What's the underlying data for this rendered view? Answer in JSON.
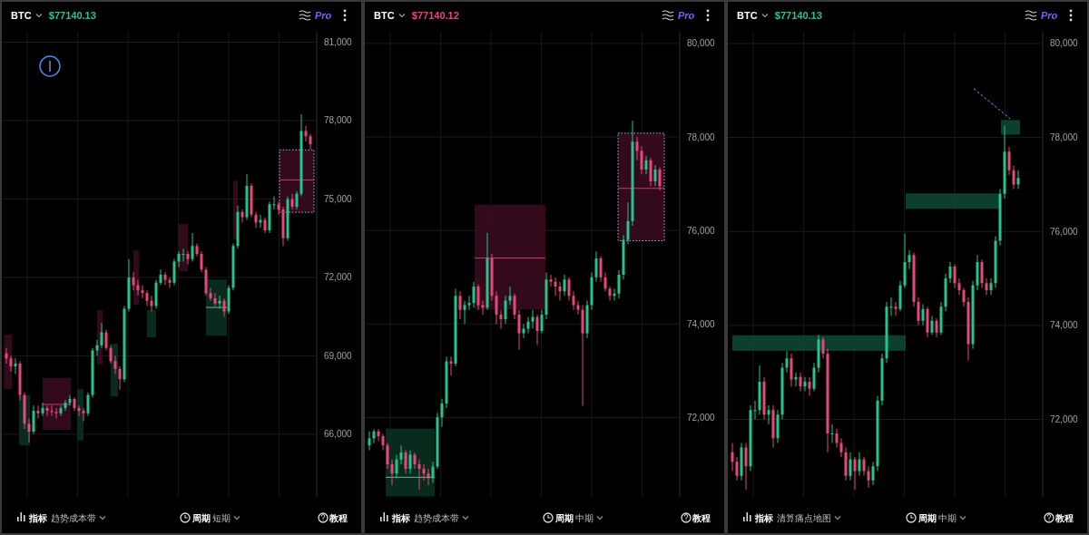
{
  "chart_data": [
    {
      "type": "candlestick",
      "title": "BTC",
      "subtitle": "$77140.13",
      "annotations": [
        "Pro",
        "指标",
        "趋势成本带",
        "周期",
        "短期",
        "教程"
      ],
      "categories": [
        null,
        null,
        null,
        null,
        null,
        null,
        null,
        null,
        null,
        null,
        null,
        null,
        null,
        null,
        null,
        null,
        null,
        null,
        null,
        null,
        null,
        null,
        null,
        null,
        null,
        null,
        null,
        null,
        null,
        null,
        null,
        null,
        null,
        null,
        null,
        null,
        null,
        null,
        null,
        null,
        null,
        null,
        null,
        null,
        null,
        null,
        null,
        null,
        null,
        null,
        null,
        null,
        null,
        null,
        null,
        null,
        null,
        null,
        null,
        null,
        null,
        null,
        null,
        null,
        null,
        null,
        null,
        null
      ],
      "ohlc": [
        [
          69100,
          69300,
          68700,
          68900
        ],
        [
          68900,
          69000,
          68400,
          68600
        ],
        [
          68600,
          68900,
          68300,
          68700
        ],
        [
          68700,
          68800,
          67300,
          67500
        ],
        [
          67500,
          67600,
          66200,
          66400
        ],
        [
          66400,
          66600,
          65700,
          66100
        ],
        [
          66100,
          67100,
          66000,
          66900
        ],
        [
          66900,
          67100,
          66600,
          66800
        ],
        [
          66800,
          67200,
          66700,
          67000
        ],
        [
          67000,
          67100,
          66700,
          66900
        ],
        [
          66900,
          67100,
          66700,
          66850
        ],
        [
          66850,
          67000,
          66600,
          66800
        ],
        [
          66800,
          67100,
          66700,
          67000
        ],
        [
          67000,
          67300,
          66900,
          67200
        ],
        [
          67200,
          67500,
          67100,
          67350
        ],
        [
          67350,
          67400,
          66900,
          67000
        ],
        [
          67000,
          67100,
          66700,
          66900
        ],
        [
          66900,
          67000,
          66500,
          66800
        ],
        [
          66800,
          67600,
          66700,
          67500
        ],
        [
          67500,
          69300,
          67400,
          69200
        ],
        [
          69200,
          69600,
          69000,
          69400
        ],
        [
          69400,
          70250,
          69300,
          69900
        ],
        [
          69900,
          70000,
          69200,
          69300
        ],
        [
          69300,
          69400,
          68700,
          68800
        ],
        [
          68800,
          69000,
          68300,
          68500
        ],
        [
          68500,
          68600,
          67700,
          68100
        ],
        [
          68100,
          70900,
          68000,
          70800
        ],
        [
          70800,
          72700,
          70700,
          72000
        ],
        [
          72000,
          72200,
          71500,
          71700
        ],
        [
          71700,
          71900,
          71300,
          71500
        ],
        [
          71500,
          71700,
          71200,
          71400
        ],
        [
          71400,
          71500,
          70900,
          71100
        ],
        [
          71100,
          71300,
          70700,
          70900
        ],
        [
          70900,
          71900,
          70800,
          71800
        ],
        [
          71800,
          72300,
          71700,
          72100
        ],
        [
          72100,
          72200,
          71700,
          71900
        ],
        [
          71900,
          72000,
          71600,
          71800
        ],
        [
          71800,
          72700,
          71700,
          72600
        ],
        [
          72600,
          73000,
          72400,
          72900
        ],
        [
          72900,
          73100,
          72600,
          72900
        ],
        [
          72900,
          73000,
          72500,
          72700
        ],
        [
          72700,
          73700,
          72600,
          73200
        ],
        [
          73200,
          73300,
          72800,
          72900
        ],
        [
          72900,
          73000,
          72200,
          72300
        ],
        [
          72300,
          72400,
          71300,
          71400
        ],
        [
          71400,
          71600,
          71100,
          71200
        ],
        [
          71200,
          71400,
          70900,
          71000
        ],
        [
          71000,
          71300,
          70800,
          71100
        ],
        [
          71100,
          71200,
          70500,
          70700
        ],
        [
          70700,
          71700,
          70600,
          71600
        ],
        [
          71600,
          73300,
          71500,
          73200
        ],
        [
          73200,
          74750,
          73100,
          74500
        ],
        [
          74500,
          74600,
          74100,
          74300
        ],
        [
          74300,
          75950,
          74200,
          75500
        ],
        [
          75500,
          75600,
          74300,
          74400
        ],
        [
          74400,
          74500,
          73900,
          74100
        ],
        [
          74100,
          74400,
          73900,
          74200
        ],
        [
          74200,
          74300,
          73700,
          73800
        ],
        [
          73800,
          74900,
          73700,
          74800
        ],
        [
          74800,
          75100,
          74600,
          74800
        ],
        [
          74800,
          74900,
          74400,
          74600
        ],
        [
          74600,
          74700,
          73200,
          73500
        ],
        [
          73500,
          75100,
          73400,
          75000
        ],
        [
          75000,
          75200,
          74600,
          74700
        ],
        [
          74700,
          75300,
          74600,
          75200
        ],
        [
          75200,
          78250,
          75100,
          77600
        ],
        [
          77600,
          77800,
          77200,
          77400
        ],
        [
          77400,
          77500,
          76900,
          77100
        ]
      ],
      "ylim": [
        63600,
        81400
      ],
      "yticks": [
        {
          "value": 66000,
          "label": "66,000"
        },
        {
          "value": 69000,
          "label": "69,000"
        },
        {
          "value": 72000,
          "label": "72,000"
        },
        {
          "value": 75000,
          "label": "75,000"
        },
        {
          "value": 78000,
          "label": "78,000"
        },
        {
          "value": 81000,
          "label": "81,000"
        }
      ],
      "grid": true
    },
    {
      "type": "candlestick",
      "title": "BTC",
      "subtitle": "$77140.12",
      "annotations": [
        "Pro",
        "指标",
        "趋势成本带",
        "周期",
        "中期",
        "教程"
      ],
      "categories": [
        null,
        null,
        null,
        null,
        null,
        null,
        null,
        null,
        null,
        null,
        null,
        null,
        null,
        null,
        null,
        null,
        null,
        null,
        null,
        null,
        null,
        null,
        null,
        null,
        null,
        null,
        null,
        null,
        null,
        null,
        null,
        null,
        null,
        null,
        null,
        null,
        null,
        null,
        null,
        null,
        null,
        null,
        null,
        null,
        null,
        null,
        null,
        null,
        null,
        null,
        null,
        null,
        null,
        null,
        null,
        null,
        null,
        null,
        null,
        null,
        null,
        null,
        null,
        null,
        null
      ],
      "ohlc": [
        [
          71400,
          71700,
          71300,
          71550
        ],
        [
          71550,
          71750,
          71450,
          71700
        ],
        [
          71700,
          71750,
          71500,
          71600
        ],
        [
          71600,
          71650,
          71300,
          71400
        ],
        [
          71400,
          71450,
          70900,
          71000
        ],
        [
          71000,
          71100,
          70550,
          70800
        ],
        [
          70800,
          71200,
          70700,
          71100
        ],
        [
          71100,
          71400,
          71000,
          71250
        ],
        [
          71250,
          71300,
          70800,
          70900
        ],
        [
          70900,
          71300,
          70800,
          71200
        ],
        [
          71200,
          71250,
          70900,
          71000
        ],
        [
          71000,
          71100,
          70450,
          70900
        ],
        [
          70900,
          71000,
          70650,
          70800
        ],
        [
          70800,
          70900,
          70550,
          70700
        ],
        [
          70700,
          71050,
          70600,
          70950
        ],
        [
          70950,
          72100,
          70900,
          72000
        ],
        [
          72000,
          72400,
          71800,
          72300
        ],
        [
          72300,
          73300,
          72200,
          73200
        ],
        [
          73200,
          73300,
          72900,
          73150
        ],
        [
          73150,
          74750,
          73100,
          74600
        ],
        [
          74600,
          74700,
          74100,
          74300
        ],
        [
          74300,
          74500,
          74000,
          74400
        ],
        [
          74400,
          74600,
          74300,
          74450
        ],
        [
          74450,
          74900,
          74350,
          74800
        ],
        [
          74800,
          74850,
          74300,
          74400
        ],
        [
          74400,
          74500,
          74200,
          74350
        ],
        [
          74350,
          75950,
          74300,
          75400
        ],
        [
          75400,
          75500,
          74500,
          74600
        ],
        [
          74600,
          74700,
          74000,
          74200
        ],
        [
          74200,
          74300,
          73900,
          74100
        ],
        [
          74100,
          74600,
          74000,
          74500
        ],
        [
          74500,
          74800,
          74400,
          74600
        ],
        [
          74600,
          74650,
          74100,
          74200
        ],
        [
          74200,
          74300,
          73450,
          73800
        ],
        [
          73800,
          74000,
          73700,
          73900
        ],
        [
          73900,
          74150,
          73800,
          74050
        ],
        [
          74050,
          74300,
          73900,
          74150
        ],
        [
          74150,
          74200,
          73550,
          73850
        ],
        [
          73850,
          74300,
          73800,
          74200
        ],
        [
          74200,
          75100,
          74100,
          74950
        ],
        [
          74950,
          75050,
          74800,
          74900
        ],
        [
          74900,
          75000,
          74600,
          74800
        ],
        [
          74800,
          74900,
          74500,
          74700
        ],
        [
          74700,
          75050,
          74600,
          74950
        ],
        [
          74950,
          75000,
          74500,
          74600
        ],
        [
          74600,
          74700,
          74300,
          74400
        ],
        [
          74400,
          74500,
          74200,
          74300
        ],
        [
          74300,
          74400,
          72250,
          73800
        ],
        [
          73800,
          74500,
          73700,
          74400
        ],
        [
          74400,
          75100,
          74300,
          75000
        ],
        [
          75000,
          75550,
          74900,
          75400
        ],
        [
          75400,
          75450,
          74900,
          75000
        ],
        [
          75000,
          75100,
          74700,
          74750
        ],
        [
          74750,
          74800,
          74500,
          74600
        ],
        [
          74600,
          74750,
          74500,
          74650
        ],
        [
          74650,
          75150,
          74550,
          75050
        ],
        [
          75050,
          75900,
          74950,
          75800
        ],
        [
          75800,
          76600,
          75700,
          76200
        ],
        [
          76200,
          78350,
          76100,
          77900
        ],
        [
          77900,
          78000,
          77500,
          77700
        ],
        [
          77700,
          77800,
          77200,
          77300
        ],
        [
          77300,
          77600,
          77200,
          77500
        ],
        [
          77500,
          77550,
          76950,
          77050
        ],
        [
          77050,
          77400,
          76950,
          77300
        ],
        [
          77300,
          77350,
          76850,
          76950
        ]
      ],
      "ylim": [
        70300,
        80250
      ],
      "yticks": [
        {
          "value": 72000,
          "label": "72,000"
        },
        {
          "value": 74000,
          "label": "74,000"
        },
        {
          "value": 76000,
          "label": "76,000"
        },
        {
          "value": 78000,
          "label": "78,000"
        },
        {
          "value": 80000,
          "label": "80,000"
        }
      ],
      "grid": true
    },
    {
      "type": "candlestick",
      "title": "BTC",
      "subtitle": "$77140.13",
      "annotations": [
        "Pro",
        "指标",
        "清算痛点地图",
        "周期",
        "中期",
        "教程"
      ],
      "categories": [
        null,
        null,
        null,
        null,
        null,
        null,
        null,
        null,
        null,
        null,
        null,
        null,
        null,
        null,
        null,
        null,
        null,
        null,
        null,
        null,
        null,
        null,
        null,
        null,
        null,
        null,
        null,
        null,
        null,
        null,
        null,
        null,
        null,
        null,
        null,
        null,
        null,
        null,
        null,
        null,
        null,
        null,
        null,
        null,
        null,
        null,
        null,
        null,
        null,
        null,
        null,
        null,
        null,
        null,
        null,
        null,
        null,
        null,
        null,
        null,
        null,
        null,
        null,
        null
      ],
      "ohlc": [
        [
          71300,
          71500,
          70900,
          71100
        ],
        [
          71100,
          71200,
          70700,
          70800
        ],
        [
          70800,
          71500,
          70700,
          71400
        ],
        [
          71400,
          71500,
          70500,
          71000
        ],
        [
          71000,
          72300,
          70900,
          72200
        ],
        [
          72200,
          72400,
          72000,
          72200
        ],
        [
          72200,
          73150,
          72100,
          72800
        ],
        [
          72800,
          72900,
          72000,
          72100
        ],
        [
          72100,
          72300,
          71900,
          72200
        ],
        [
          72200,
          72300,
          71400,
          71600
        ],
        [
          71600,
          72200,
          71500,
          72100
        ],
        [
          72100,
          73200,
          72000,
          73100
        ],
        [
          73100,
          73450,
          73000,
          73300
        ],
        [
          73300,
          73400,
          72700,
          72850
        ],
        [
          72850,
          73000,
          72700,
          72900
        ],
        [
          72900,
          73000,
          72600,
          72700
        ],
        [
          72700,
          72900,
          72600,
          72800
        ],
        [
          72800,
          72900,
          72500,
          72650
        ],
        [
          72650,
          73200,
          72600,
          73100
        ],
        [
          73100,
          73800,
          73000,
          73700
        ],
        [
          73700,
          73750,
          73300,
          73400
        ],
        [
          73400,
          73500,
          71300,
          71700
        ],
        [
          71700,
          71900,
          71500,
          71700
        ],
        [
          71700,
          71800,
          71400,
          71500
        ],
        [
          71500,
          71600,
          71200,
          71300
        ],
        [
          71300,
          71400,
          70700,
          70800
        ],
        [
          70800,
          71300,
          70700,
          71150
        ],
        [
          71150,
          71200,
          70500,
          70900
        ],
        [
          70900,
          71300,
          70800,
          71150
        ],
        [
          71150,
          71200,
          70800,
          70900
        ],
        [
          70900,
          71000,
          70550,
          70700
        ],
        [
          70700,
          71100,
          70600,
          71000
        ],
        [
          71000,
          72500,
          70900,
          72400
        ],
        [
          72400,
          73400,
          72300,
          73300
        ],
        [
          73300,
          74500,
          73200,
          74400
        ],
        [
          74400,
          74600,
          74200,
          74400
        ],
        [
          74400,
          74500,
          74200,
          74350
        ],
        [
          74350,
          74950,
          74300,
          74850
        ],
        [
          74850,
          75950,
          74800,
          75350
        ],
        [
          75350,
          75600,
          75200,
          75500
        ],
        [
          75500,
          75550,
          74400,
          74500
        ],
        [
          74500,
          74600,
          74000,
          74100
        ],
        [
          74100,
          74450,
          74000,
          74350
        ],
        [
          74350,
          74400,
          73750,
          73850
        ],
        [
          73850,
          74200,
          73800,
          74100
        ],
        [
          74100,
          74150,
          73750,
          73850
        ],
        [
          73850,
          74500,
          73800,
          74400
        ],
        [
          74400,
          75100,
          74300,
          75000
        ],
        [
          75000,
          75350,
          74900,
          75250
        ],
        [
          75250,
          75300,
          74800,
          74900
        ],
        [
          74900,
          75000,
          74650,
          74750
        ],
        [
          74750,
          74800,
          74400,
          74500
        ],
        [
          74500,
          74600,
          73250,
          73600
        ],
        [
          73600,
          74950,
          73500,
          74850
        ],
        [
          74850,
          75500,
          74750,
          75350
        ],
        [
          75350,
          75400,
          74800,
          74900
        ],
        [
          74900,
          75000,
          74650,
          74750
        ],
        [
          74750,
          75000,
          74650,
          74900
        ],
        [
          74900,
          75900,
          74800,
          75800
        ],
        [
          75800,
          76900,
          75700,
          76800
        ],
        [
          76800,
          78250,
          76700,
          77700
        ],
        [
          77700,
          77800,
          77200,
          77300
        ],
        [
          77300,
          77400,
          76900,
          77000
        ],
        [
          77000,
          77300,
          76900,
          77140
        ]
      ],
      "ylim": [
        70350,
        80250
      ],
      "yticks": [
        {
          "value": 72000,
          "label": "72,000"
        },
        {
          "value": 74000,
          "label": "74,000"
        },
        {
          "value": 76000,
          "label": "76,000"
        },
        {
          "value": 78000,
          "label": "78,000"
        },
        {
          "value": 80000,
          "label": "80,000"
        }
      ],
      "grid": true
    }
  ]
}
